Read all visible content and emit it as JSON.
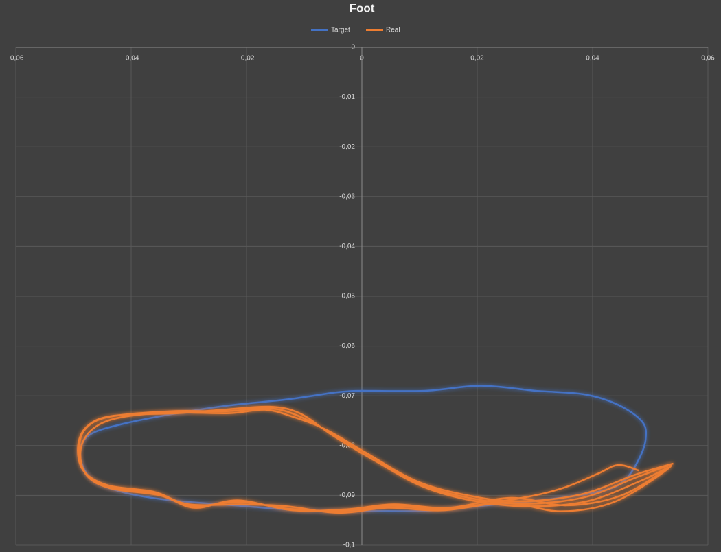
{
  "chart_data": {
    "type": "scatter_line",
    "title": "Foot",
    "legend": "top",
    "grid": true,
    "smooth": true,
    "xlim": [
      -0.06,
      0.06
    ],
    "xticks": [
      {
        "value": -0.06,
        "label": "-0,06"
      },
      {
        "value": -0.04,
        "label": "-0,04"
      },
      {
        "value": -0.02,
        "label": "-0,02"
      },
      0,
      {
        "value": 0.02,
        "label": "0,02"
      },
      {
        "value": 0.04,
        "label": "0,04"
      },
      {
        "value": 0.06,
        "label": "0,06"
      }
    ],
    "ylim": [
      -0.1,
      0
    ],
    "yticks": [
      0,
      {
        "value": -0.01,
        "label": "-0,01"
      },
      {
        "value": -0.02,
        "label": "-0,02"
      },
      {
        "value": -0.03,
        "label": "-0,03"
      },
      {
        "value": -0.04,
        "label": "-0,04"
      },
      {
        "value": -0.05,
        "label": "-0,05"
      },
      {
        "value": -0.06,
        "label": "-0,06"
      },
      {
        "value": -0.07,
        "label": "-0,07"
      },
      {
        "value": -0.08,
        "label": "-0,08"
      },
      {
        "value": -0.09,
        "label": "-0,09"
      },
      {
        "value": -0.1,
        "label": "-0,1"
      }
    ],
    "series": [
      {
        "name": "Target",
        "color": "#4472c4",
        "x": [
          0,
          0.011,
          0.0206,
          0.0301,
          0.0385,
          0.0444,
          0.0486,
          0.0492,
          0.048,
          0.0456,
          0.042,
          0.0325,
          0.0206,
          0.0111,
          0,
          -0.0092,
          -0.0211,
          -0.033,
          -0.0413,
          -0.0467,
          -0.0488,
          -0.0487,
          -0.0467,
          -0.0413,
          -0.033,
          -0.0235,
          -0.0127,
          -0.0044,
          0
        ],
        "values": [
          -0.069,
          -0.069,
          -0.068,
          -0.069,
          -0.0697,
          -0.0718,
          -0.0752,
          -0.0787,
          -0.0828,
          -0.0869,
          -0.089,
          -0.0908,
          -0.0921,
          -0.0931,
          -0.0931,
          -0.0931,
          -0.0921,
          -0.091,
          -0.0894,
          -0.0869,
          -0.0828,
          -0.08,
          -0.0775,
          -0.0756,
          -0.0737,
          -0.072,
          -0.0707,
          -0.0693,
          -0.069
        ]
      },
      {
        "name": "Real",
        "color": "#ed7d31",
        "x": [
          0.048,
          0.0444,
          0.0408,
          0.0349,
          0.0277,
          0.0146,
          0.0051,
          -0.0032,
          -0.0127,
          -0.0211,
          -0.0294,
          -0.0354,
          -0.0437,
          -0.0479,
          -0.049,
          -0.0479,
          -0.0437,
          -0.033,
          -0.0235,
          -0.0163,
          -0.0115,
          -0.0056,
          0.0015,
          0.0099,
          0.0182,
          0.0277,
          0.0385,
          0.048,
          0.0535,
          0.044,
          0.0345,
          0.025,
          0.014,
          0.0045,
          -0.004,
          -0.013,
          -0.0205,
          -0.03,
          -0.036,
          -0.044,
          -0.0483,
          -0.0492,
          -0.0475,
          -0.043,
          -0.032,
          -0.024,
          -0.016,
          -0.0108,
          -0.005,
          0.0022,
          0.0105,
          0.019,
          0.0285,
          0.039,
          0.0485,
          0.053,
          0.045,
          0.0355,
          0.0258,
          0.015,
          0.0055,
          -0.0025,
          -0.012,
          -0.0215,
          -0.029,
          -0.035,
          -0.0435,
          -0.0477,
          -0.0488,
          -0.047,
          -0.0425,
          -0.0335,
          -0.023,
          -0.0168,
          -0.012,
          -0.0062,
          0.0008,
          0.0092,
          0.0175,
          0.027,
          0.038,
          0.0475,
          0.054
        ],
        "values": [
          -0.085,
          -0.0839,
          -0.0857,
          -0.0885,
          -0.0905,
          -0.0927,
          -0.0921,
          -0.0931,
          -0.0927,
          -0.0913,
          -0.0921,
          -0.0897,
          -0.0883,
          -0.0855,
          -0.0807,
          -0.0766,
          -0.0742,
          -0.0731,
          -0.0731,
          -0.0725,
          -0.0738,
          -0.0773,
          -0.0821,
          -0.0876,
          -0.0904,
          -0.0917,
          -0.0904,
          -0.0862,
          -0.0842,
          -0.0912,
          -0.0932,
          -0.0915,
          -0.093,
          -0.0925,
          -0.0935,
          -0.0922,
          -0.0918,
          -0.0918,
          -0.0893,
          -0.088,
          -0.085,
          -0.08,
          -0.076,
          -0.074,
          -0.0735,
          -0.0728,
          -0.0722,
          -0.0735,
          -0.078,
          -0.083,
          -0.0882,
          -0.091,
          -0.0922,
          -0.0912,
          -0.087,
          -0.0845,
          -0.09,
          -0.092,
          -0.0905,
          -0.0925,
          -0.0918,
          -0.0928,
          -0.093,
          -0.091,
          -0.0925,
          -0.09,
          -0.0886,
          -0.086,
          -0.0812,
          -0.077,
          -0.0745,
          -0.0734,
          -0.0735,
          -0.0728,
          -0.0742,
          -0.0768,
          -0.0815,
          -0.087,
          -0.0898,
          -0.0912,
          -0.0898,
          -0.0858,
          -0.0836
        ]
      }
    ]
  }
}
